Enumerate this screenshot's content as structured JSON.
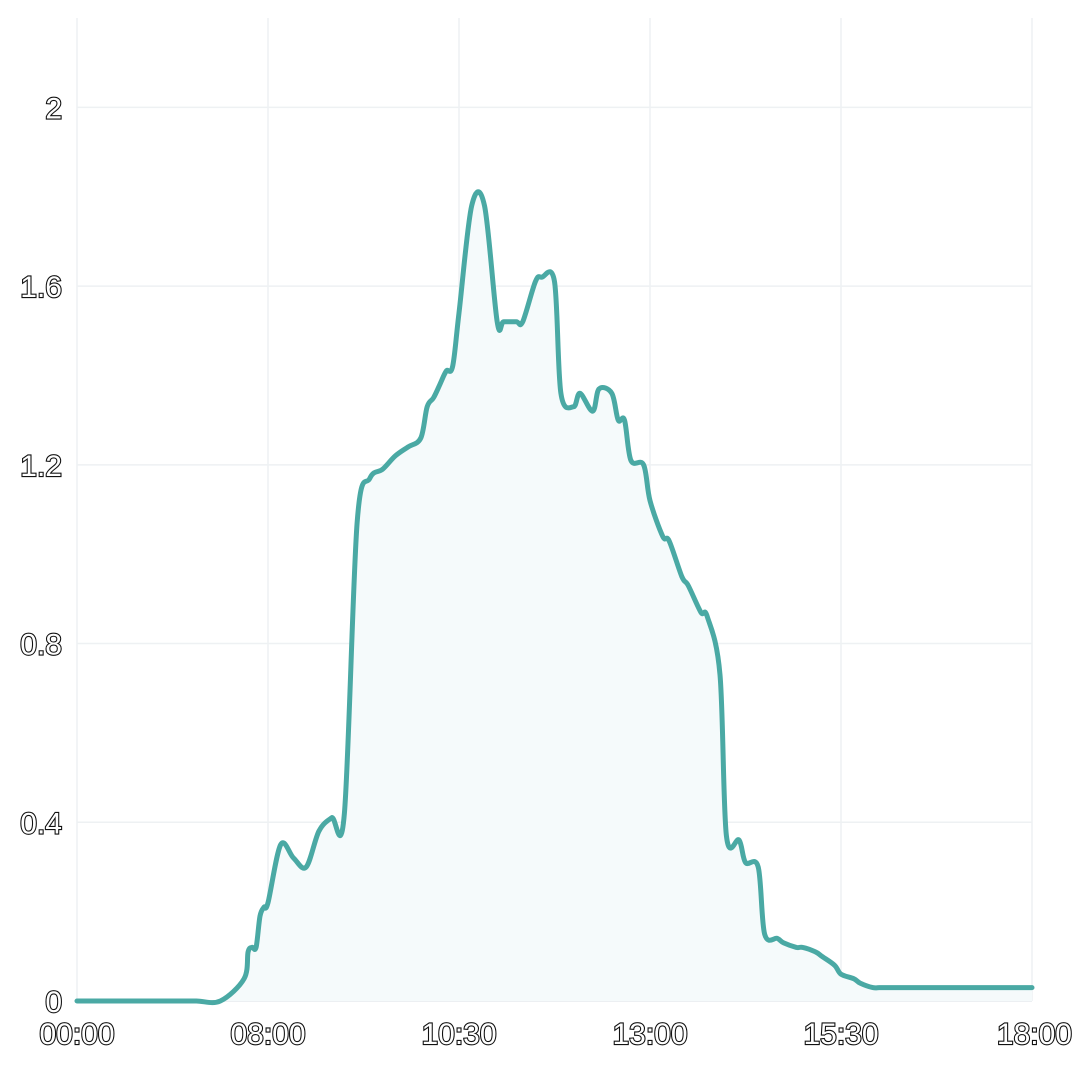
{
  "chart_data": {
    "type": "area",
    "title": "",
    "xlabel": "",
    "ylabel": "",
    "x_ticks": [
      "00:00",
      "08:00",
      "10:30",
      "13:00",
      "15:30",
      "18:00"
    ],
    "y_ticks": [
      "0",
      "0.4",
      "0.8",
      "1.2",
      "1.6",
      "2"
    ],
    "ylim": [
      0,
      2.2
    ],
    "grid": true,
    "colors": {
      "line": "#4aa9a4",
      "fill": "#f5fafb",
      "grid": "#eef1f3"
    },
    "series": [
      {
        "x": [
          "00:00",
          "01:00",
          "02:00",
          "03:00",
          "04:00",
          "05:00",
          "06:00",
          "07:00",
          "07:10",
          "07:20",
          "07:30",
          "07:40",
          "07:50",
          "08:00",
          "08:10",
          "08:20",
          "08:30",
          "08:40",
          "08:50",
          "09:00",
          "09:10",
          "09:20",
          "09:30",
          "09:40",
          "09:50",
          "10:00",
          "10:05",
          "10:10",
          "10:15",
          "10:20",
          "10:25",
          "10:30",
          "10:40",
          "10:50",
          "11:00",
          "11:05",
          "11:15",
          "11:20",
          "11:30",
          "11:35",
          "11:45",
          "11:50",
          "12:00",
          "12:05",
          "12:15",
          "12:20",
          "12:30",
          "12:35",
          "12:40",
          "12:45",
          "12:55",
          "13:00",
          "13:10",
          "13:15",
          "13:25",
          "13:30",
          "13:40",
          "13:45",
          "13:55",
          "14:00",
          "14:10",
          "14:15",
          "14:25",
          "14:30",
          "14:40",
          "14:45",
          "14:55",
          "15:00",
          "15:10",
          "15:15",
          "15:25",
          "15:30",
          "15:40",
          "15:45",
          "15:55",
          "16:00",
          "16:05",
          "16:10",
          "16:15",
          "16:20",
          "16:30",
          "16:35",
          "16:40",
          "16:50",
          "17:00",
          "17:10",
          "17:20",
          "17:30",
          "17:40",
          "17:50",
          "18:00"
        ],
        "y": [
          0,
          0,
          0,
          0,
          0,
          0,
          0,
          0.05,
          0.11,
          0.12,
          0.12,
          0.19,
          0.21,
          0.22,
          0.35,
          0.32,
          0.3,
          0.38,
          0.41,
          0.42,
          1.07,
          1.17,
          1.19,
          1.22,
          1.24,
          1.26,
          1.33,
          1.35,
          1.38,
          1.41,
          1.42,
          1.54,
          1.78,
          1.78,
          1.52,
          1.52,
          1.52,
          1.52,
          1.61,
          1.62,
          1.61,
          1.36,
          1.33,
          1.36,
          1.32,
          1.37,
          1.36,
          1.3,
          1.3,
          1.21,
          1.2,
          1.12,
          1.04,
          1.03,
          0.95,
          0.93,
          0.87,
          0.86,
          0.73,
          0.37,
          0.36,
          0.31,
          0.3,
          0.15,
          0.14,
          0.13,
          0.12,
          0.12,
          0.11,
          0.1,
          0.08,
          0.06,
          0.05,
          0.04,
          0.03,
          0.03,
          0.03,
          0.03,
          0.03,
          0.03,
          0.03,
          0.03,
          0.03,
          0.03,
          0.03,
          0.03,
          0.03,
          0.03,
          0.03,
          0.03,
          0.03
        ]
      }
    ]
  }
}
